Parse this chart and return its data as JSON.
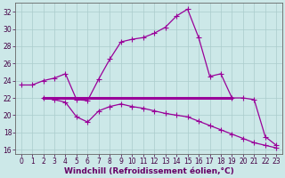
{
  "line1_x": [
    0,
    1,
    2,
    3,
    4,
    5,
    6,
    7,
    8,
    9,
    10,
    11,
    12,
    13,
    14,
    15,
    16,
    17,
    18,
    19,
    20,
    21,
    22,
    23
  ],
  "line1_y": [
    23.5,
    23.5,
    24.0,
    24.3,
    24.8,
    21.8,
    21.7,
    24.2,
    26.5,
    28.5,
    28.8,
    29.0,
    29.5,
    30.2,
    31.5,
    32.3,
    29.0,
    24.5,
    24.8,
    22.0,
    22.0,
    21.8,
    17.5,
    16.5
  ],
  "line2_x": [
    2,
    19
  ],
  "line2_y": [
    22.0,
    22.0
  ],
  "line3_x": [
    2,
    3,
    4,
    5,
    6,
    7,
    8,
    9,
    10,
    11,
    12,
    13,
    14,
    15,
    16,
    17,
    18,
    19,
    20,
    21,
    22,
    23
  ],
  "line3_y": [
    22.0,
    21.8,
    21.5,
    19.8,
    19.2,
    20.5,
    21.0,
    21.3,
    21.0,
    20.8,
    20.5,
    20.2,
    20.0,
    19.8,
    19.3,
    18.8,
    18.3,
    17.8,
    17.3,
    16.8,
    16.5,
    16.2
  ],
  "line_color": "#990099",
  "bg_color": "#cce8e8",
  "grid_color": "#aacccc",
  "xlim": [
    -0.5,
    23.5
  ],
  "ylim": [
    15.5,
    33.0
  ],
  "yticks": [
    16,
    18,
    20,
    22,
    24,
    26,
    28,
    30,
    32
  ],
  "xticks": [
    0,
    1,
    2,
    3,
    4,
    5,
    6,
    7,
    8,
    9,
    10,
    11,
    12,
    13,
    14,
    15,
    16,
    17,
    18,
    19,
    20,
    21,
    22,
    23
  ],
  "xlabel": "Windchill (Refroidissement éolien,°C)",
  "xlabel_fontsize": 6.5,
  "tick_fontsize": 5.5,
  "marker": "P",
  "marker_size": 2.5,
  "linewidth": 0.9,
  "hline_lw": 2.2
}
